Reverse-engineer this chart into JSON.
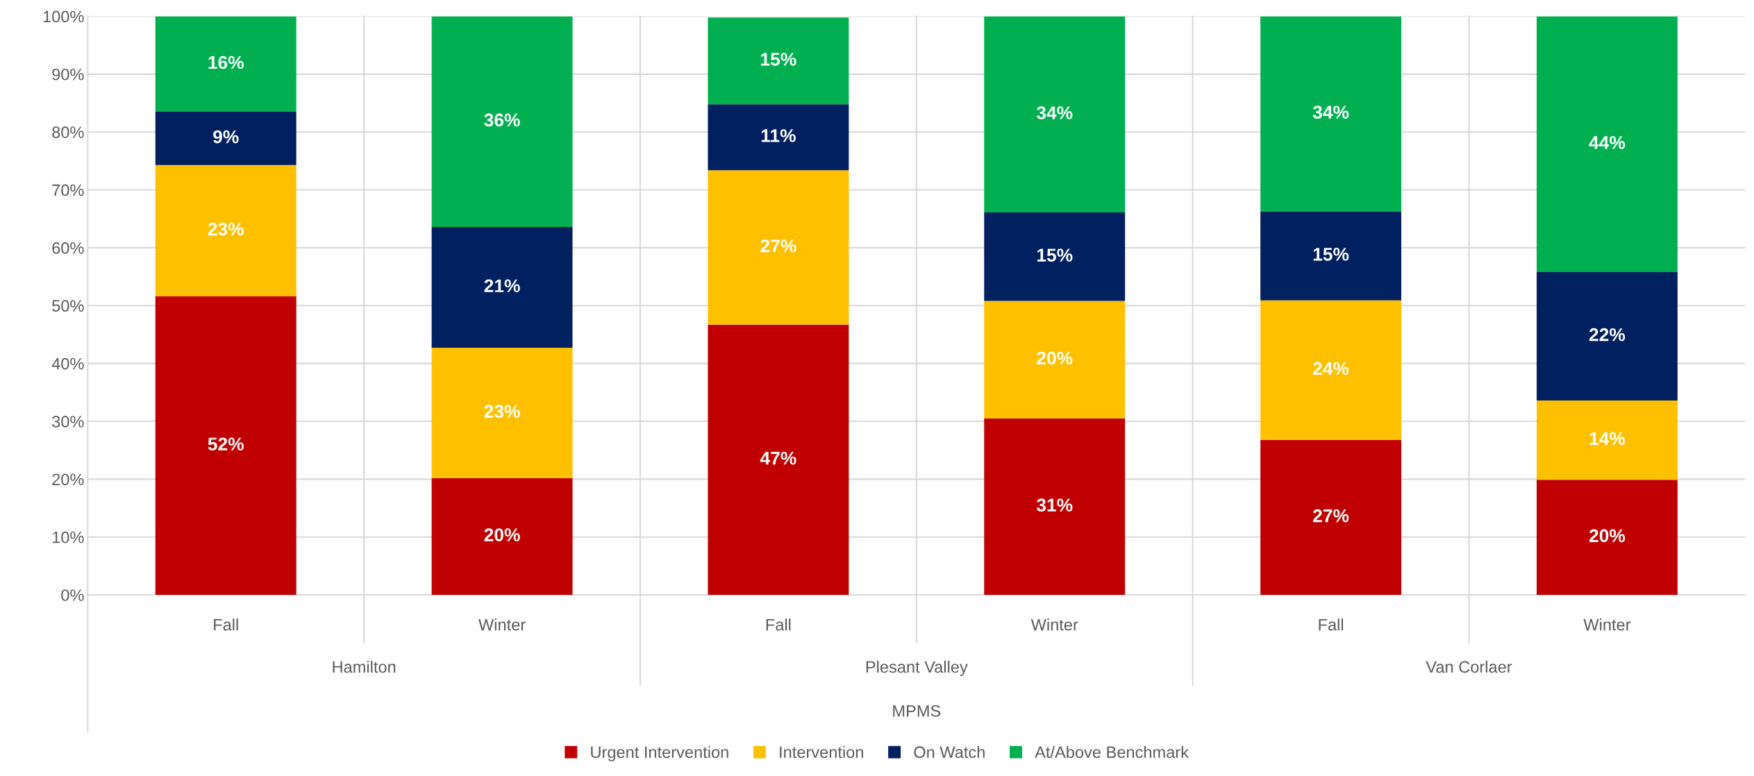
{
  "chart_data": {
    "type": "bar",
    "stacked": true,
    "categories": [
      "Fall",
      "Winter",
      "Fall",
      "Winter",
      "Fall",
      "Winter"
    ],
    "series": [
      {
        "name": "Urgent Intervention",
        "color": "#c00000",
        "values": [
          51.6,
          20.2,
          46.7,
          30.5,
          26.8,
          19.9
        ],
        "value_labels": [
          "52%",
          "20%",
          "47%",
          "31%",
          "27%",
          "20%"
        ]
      },
      {
        "name": "Intervention",
        "color": "#ffc000",
        "values": [
          22.7,
          22.5,
          26.7,
          20.3,
          24.1,
          13.7
        ],
        "value_labels": [
          "23%",
          "23%",
          "27%",
          "20%",
          "24%",
          "14%"
        ]
      },
      {
        "name": "On Watch",
        "color": "#002060",
        "values": [
          9.2,
          20.9,
          11.4,
          15.3,
          15.4,
          22.2
        ],
        "value_labels": [
          "9%",
          "21%",
          "11%",
          "15%",
          "15%",
          "22%"
        ]
      },
      {
        "name": "At/Above Benchmark",
        "color": "#00b050",
        "values": [
          16.5,
          36.4,
          15.0,
          33.9,
          33.7,
          44.2
        ],
        "value_labels": [
          "16%",
          "36%",
          "15%",
          "34%",
          "34%",
          "44%"
        ]
      }
    ],
    "ylim": [
      0,
      100
    ],
    "yticks": [
      {
        "value": 0,
        "label": "0%"
      },
      {
        "value": 10,
        "label": "10%"
      },
      {
        "value": 20,
        "label": "20%"
      },
      {
        "value": 30,
        "label": "30%"
      },
      {
        "value": 40,
        "label": "40%"
      },
      {
        "value": 50,
        "label": "50%"
      },
      {
        "value": 60,
        "label": "60%"
      },
      {
        "value": 70,
        "label": "70%"
      },
      {
        "value": 80,
        "label": "80%"
      },
      {
        "value": 90,
        "label": "90%"
      },
      {
        "value": 100,
        "label": "100%"
      }
    ],
    "annotations": [
      "Hamilton",
      "Plesant Valley",
      "Van Corlaer",
      "MPMS"
    ],
    "grid": "y",
    "legend": "bottom"
  }
}
